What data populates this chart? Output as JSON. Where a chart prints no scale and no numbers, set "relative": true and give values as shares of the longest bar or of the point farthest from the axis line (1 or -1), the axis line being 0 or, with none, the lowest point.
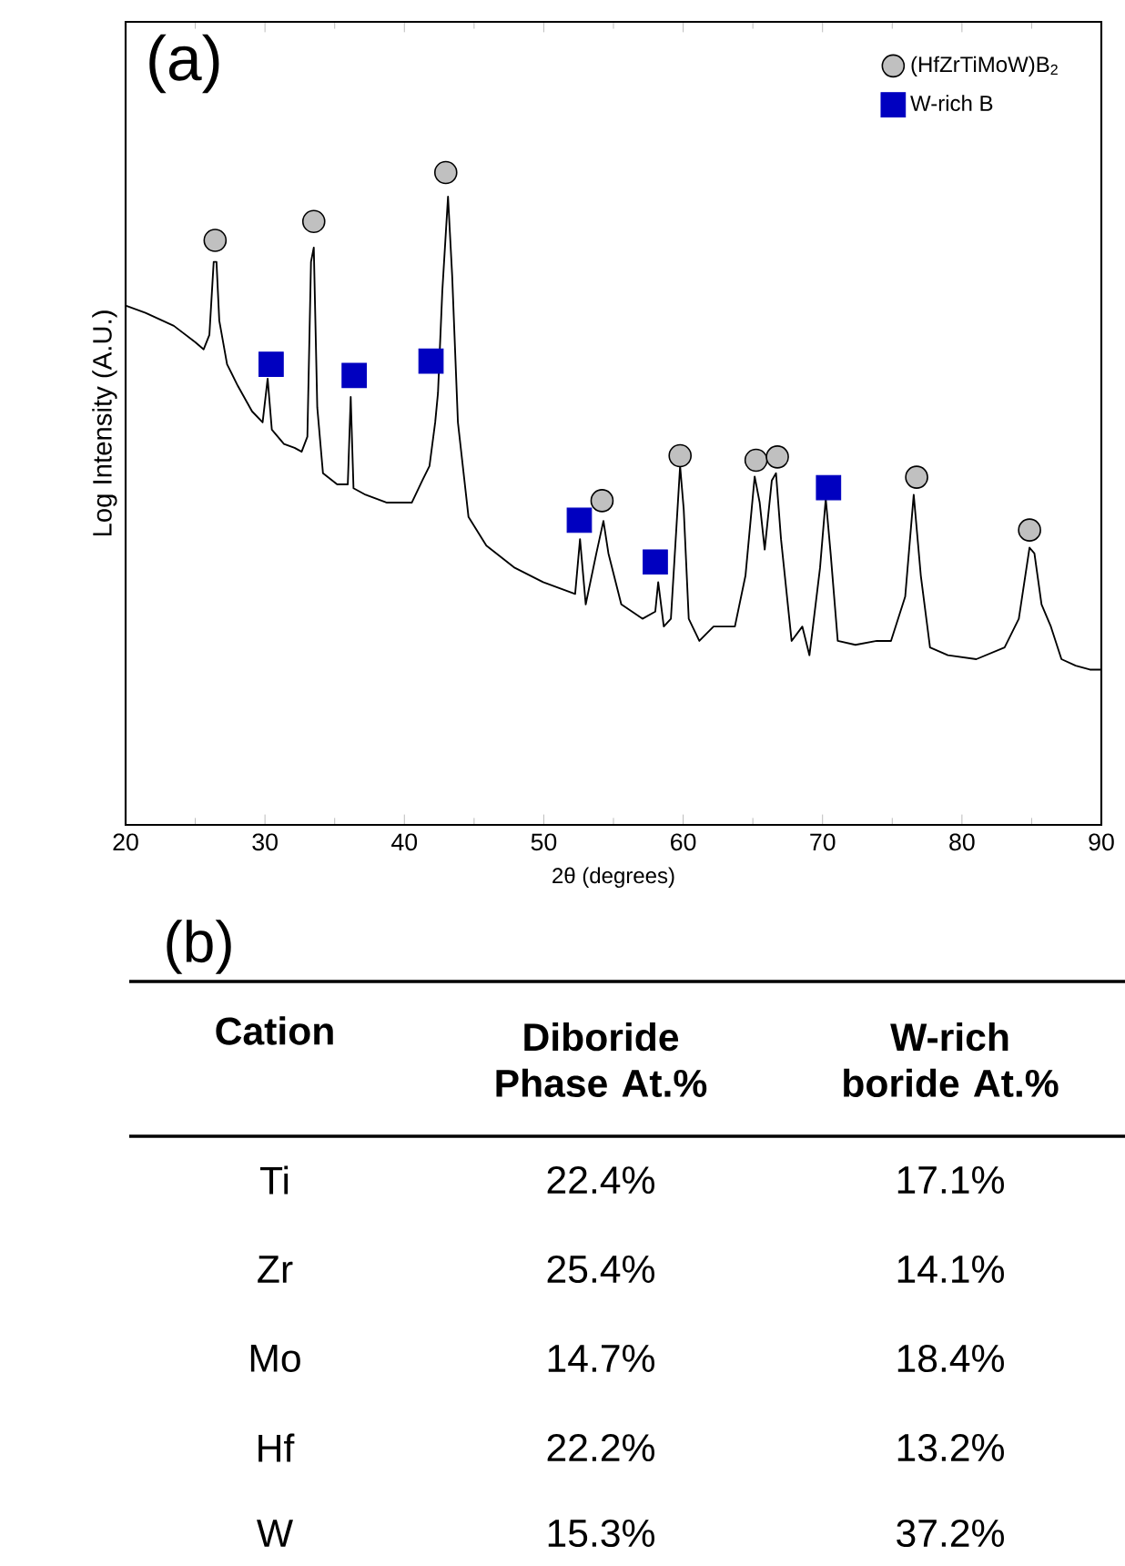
{
  "chart_data": [
    {
      "type": "line",
      "relative": true,
      "xlabel": "2θ (degrees)",
      "ylabel": "Log Intensity (A.U.)",
      "annotations": [
        "(a)"
      ],
      "xlim": [
        20,
        90
      ],
      "xticks": [
        20,
        30,
        40,
        50,
        60,
        70,
        80,
        90
      ],
      "legend": "top right",
      "series": [
        {
          "type": "line",
          "color": "#000000",
          "marker": "none",
          "x": [
            20.0,
            21.43,
            23.46,
            24.99,
            25.6,
            26.01,
            26.32,
            26.52,
            26.72,
            27.28,
            28.05,
            29.07,
            29.83,
            30.19,
            30.49,
            31.36,
            32.12,
            32.63,
            33.04,
            33.3,
            33.5,
            33.75,
            34.16,
            35.18,
            35.94,
            36.15,
            36.35,
            37.22,
            38.75,
            40.53,
            41.29,
            41.8,
            42.21,
            42.41,
            42.72,
            43.13,
            43.43,
            43.84,
            44.6,
            45.88,
            47.92,
            49.95,
            52.25,
            52.6,
            53.01,
            53.77,
            54.28,
            54.64,
            55.56,
            57.08,
            58.0,
            58.21,
            58.61,
            59.12,
            59.53,
            59.78,
            60.04,
            60.4,
            61.16,
            62.18,
            63.71,
            64.47,
            65.13,
            65.49,
            65.85,
            66.36,
            66.66,
            67.02,
            67.78,
            68.55,
            69.06,
            69.82,
            70.23,
            70.58,
            71.09,
            72.36,
            73.89,
            74.91,
            75.93,
            76.54,
            77.05,
            77.71,
            78.99,
            81.03,
            83.06,
            84.08,
            84.85,
            85.2,
            85.71,
            86.38,
            87.14,
            88.16,
            89.18,
            90.0
          ],
          "values": [
            0.796,
            0.785,
            0.765,
            0.74,
            0.729,
            0.751,
            0.863,
            0.863,
            0.773,
            0.706,
            0.673,
            0.634,
            0.617,
            0.684,
            0.606,
            0.584,
            0.578,
            0.572,
            0.595,
            0.863,
            0.885,
            0.64,
            0.539,
            0.522,
            0.522,
            0.656,
            0.516,
            0.506,
            0.494,
            0.494,
            0.528,
            0.55,
            0.617,
            0.662,
            0.818,
            0.963,
            0.841,
            0.617,
            0.472,
            0.428,
            0.394,
            0.372,
            0.354,
            0.438,
            0.338,
            0.416,
            0.466,
            0.416,
            0.338,
            0.316,
            0.327,
            0.372,
            0.304,
            0.316,
            0.461,
            0.55,
            0.484,
            0.316,
            0.282,
            0.304,
            0.304,
            0.382,
            0.534,
            0.494,
            0.422,
            0.528,
            0.539,
            0.438,
            0.282,
            0.304,
            0.26,
            0.394,
            0.5,
            0.416,
            0.282,
            0.276,
            0.282,
            0.282,
            0.35,
            0.506,
            0.382,
            0.272,
            0.26,
            0.254,
            0.272,
            0.316,
            0.425,
            0.416,
            0.338,
            0.304,
            0.254,
            0.244,
            0.238,
            0.238
          ]
        },
        {
          "type": "scatter",
          "name": "(HfZrTiMoW)B$_{2}$",
          "color": "#c0c0c0",
          "marker": "circle",
          "x": [
            26.42,
            33.5,
            42.97,
            54.18,
            59.78,
            65.23,
            66.76,
            76.75,
            84.85
          ],
          "values": [
            0.896,
            0.925,
            1.0,
            0.497,
            0.566,
            0.559,
            0.564,
            0.533,
            0.452
          ]
        },
        {
          "type": "scatter",
          "name": "W-rich B",
          "color": "#0000c0",
          "marker": "square",
          "x": [
            30.44,
            36.4,
            41.91,
            52.55,
            58.0,
            70.43
          ],
          "values": [
            0.706,
            0.689,
            0.711,
            0.467,
            0.403,
            0.517
          ]
        }
      ]
    },
    {
      "type": "other",
      "title": "(b)",
      "xlabel": "Cation",
      "categories": [
        "Ti",
        "Zr",
        "Mo",
        "Hf",
        "W"
      ],
      "series": [
        {
          "name": "Diboride Phase At.%",
          "values": [
            22.4,
            25.4,
            14.7,
            22.2,
            15.3
          ],
          "value_labels": [
            "22.4%",
            "25.4%",
            "14.7%",
            "22.2%",
            "15.3%"
          ]
        },
        {
          "name": "W-rich boride At.%",
          "values": [
            17.1,
            14.1,
            18.4,
            13.2,
            37.2
          ],
          "value_labels": [
            "17.1%",
            "14.1%",
            "18.4%",
            "13.2%",
            "37.2%"
          ]
        }
      ]
    }
  ]
}
